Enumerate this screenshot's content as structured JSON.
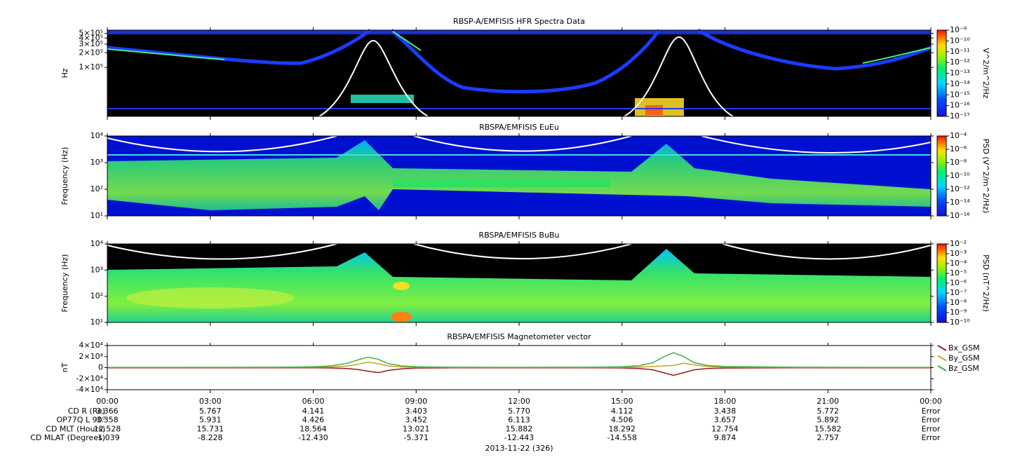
{
  "chart_data": [
    {
      "type": "spectrogram",
      "title": "RBSP-A/EMFISIS  HFR Spectra Data",
      "ylabel": "Hz",
      "log_y": true,
      "ylim": [
        10000,
        580000
      ],
      "yticks": [
        {
          "value": 100000,
          "label": "1×10⁵"
        },
        {
          "value": 200000,
          "label": "2×10⁵"
        },
        {
          "value": 300000,
          "label": "3×10⁵"
        },
        {
          "value": 400000,
          "label": "4×10⁵"
        },
        {
          "value": 500000,
          "label": "5×10⁵"
        }
      ],
      "zlabel": "V^2/m^2/Hz",
      "log_z": true,
      "zlim": [
        1e-17,
        1e-09
      ],
      "zticks": [
        {
          "value": 1e-17,
          "label": "10⁻¹⁷"
        },
        {
          "value": 1e-16,
          "label": "10⁻¹⁶"
        },
        {
          "value": 1e-15,
          "label": "10⁻¹⁵"
        },
        {
          "value": 1e-14,
          "label": "10⁻¹⁴"
        },
        {
          "value": 1e-13,
          "label": "10⁻¹³"
        },
        {
          "value": 1e-12,
          "label": "10⁻¹²"
        },
        {
          "value": 1e-11,
          "label": "10⁻¹¹"
        },
        {
          "value": 1e-10,
          "label": "10⁻¹⁰"
        },
        {
          "value": 1e-09,
          "label": "10⁻⁹"
        }
      ]
    },
    {
      "type": "spectrogram",
      "title": "RBSPA/EMFISIS  EuEu",
      "ylabel": "Frequency (Hz)",
      "log_y": true,
      "ylim": [
        10,
        10000
      ],
      "yticks": [
        {
          "value": 10,
          "label": "10¹"
        },
        {
          "value": 100,
          "label": "10²"
        },
        {
          "value": 1000,
          "label": "10³"
        },
        {
          "value": 10000,
          "label": "10⁴"
        }
      ],
      "zlabel": "PSD (V^2/m^2/Hz)",
      "log_z": true,
      "zlim": [
        1e-16,
        0.0001
      ],
      "zticks": [
        {
          "value": 1e-16,
          "label": "10⁻¹⁶"
        },
        {
          "value": 1e-14,
          "label": "10⁻¹⁴"
        },
        {
          "value": 1e-12,
          "label": "10⁻¹²"
        },
        {
          "value": 1e-10,
          "label": "10⁻¹⁰"
        },
        {
          "value": 1e-08,
          "label": "10⁻⁸"
        },
        {
          "value": 1e-06,
          "label": "10⁻⁶"
        },
        {
          "value": 0.0001,
          "label": "10⁻⁴"
        }
      ]
    },
    {
      "type": "spectrogram",
      "title": "RBSPA/EMFISIS  BuBu",
      "ylabel": "Frequency (Hz)",
      "log_y": true,
      "ylim": [
        10,
        10000
      ],
      "yticks": [
        {
          "value": 10,
          "label": "10¹"
        },
        {
          "value": 100,
          "label": "10²"
        },
        {
          "value": 1000,
          "label": "10³"
        },
        {
          "value": 10000,
          "label": "10⁴"
        }
      ],
      "zlabel": "PSD (nT^2/Hz)",
      "log_z": true,
      "zlim": [
        1e-10,
        0.01
      ],
      "zticks": [
        {
          "value": 1e-10,
          "label": "10⁻¹⁰"
        },
        {
          "value": 1e-09,
          "label": "10⁻⁹"
        },
        {
          "value": 1e-08,
          "label": "10⁻⁸"
        },
        {
          "value": 1e-07,
          "label": "10⁻⁷"
        },
        {
          "value": 1e-06,
          "label": "10⁻⁶"
        },
        {
          "value": 1e-05,
          "label": "10⁻⁵"
        },
        {
          "value": 0.0001,
          "label": "10⁻⁴"
        },
        {
          "value": 0.001,
          "label": "10⁻³"
        },
        {
          "value": 0.01,
          "label": "10⁻²"
        }
      ]
    },
    {
      "type": "line",
      "title": "RBSPA/EMFISIS  Magnetometer vector",
      "ylabel": "nT",
      "log_y": false,
      "ylim": [
        -40000,
        40000
      ],
      "yticks": [
        {
          "value": -40000,
          "label": "-4×10⁴"
        },
        {
          "value": -20000,
          "label": "-2×10⁴"
        },
        0,
        {
          "value": 20000,
          "label": "2×10⁴"
        },
        {
          "value": 40000,
          "label": "4×10⁴"
        }
      ],
      "xlim": [
        0,
        24
      ],
      "xticks": [
        {
          "value": 0,
          "label": "00:00"
        },
        {
          "value": 3,
          "label": "03:00"
        },
        {
          "value": 6,
          "label": "06:00"
        },
        {
          "value": 9,
          "label": "09:00"
        },
        {
          "value": 12,
          "label": "12:00"
        },
        {
          "value": 15,
          "label": "15:00"
        },
        {
          "value": 18,
          "label": "18:00"
        },
        {
          "value": 21,
          "label": "21:00"
        },
        {
          "value": 24,
          "label": "00:00"
        }
      ],
      "x": [
        0,
        2,
        4,
        5,
        6,
        6.5,
        7,
        7.3,
        7.6,
        7.9,
        8.2,
        8.6,
        9,
        10,
        12,
        14,
        15,
        15.5,
        15.9,
        16.2,
        16.5,
        16.8,
        17.1,
        17.5,
        18,
        20,
        22,
        24
      ],
      "series": [
        {
          "name": "Bx_GSM",
          "color": "#a01818",
          "values": [
            -300,
            -300,
            -300,
            -300,
            -400,
            -600,
            -1500,
            -3500,
            -6500,
            -9000,
            -5000,
            -2000,
            -800,
            -400,
            -300,
            -300,
            -600,
            -1500,
            -4000,
            -9000,
            -14000,
            -9000,
            -4000,
            -1500,
            -700,
            -400,
            -300,
            -300
          ]
        },
        {
          "name": "By_GSM",
          "color": "#c8a028",
          "values": [
            200,
            200,
            300,
            400,
            700,
            1200,
            3000,
            6000,
            10000,
            7000,
            3000,
            1200,
            600,
            400,
            200,
            300,
            500,
            1000,
            2000,
            3000,
            4000,
            8000,
            5000,
            2000,
            900,
            400,
            200,
            200
          ]
        },
        {
          "name": "Bz_GSM",
          "color": "#3cb43c",
          "values": [
            500,
            500,
            600,
            800,
            1500,
            3000,
            8000,
            14000,
            19000,
            15000,
            7000,
            3000,
            1500,
            800,
            500,
            800,
            1500,
            3500,
            9000,
            19000,
            27000,
            20000,
            9000,
            4000,
            2000,
            800,
            500,
            500
          ]
        }
      ],
      "ephemeris": [
        {
          "label": "CD R (Re)",
          "values": [
            "3.366",
            "5.767",
            "4.141",
            "3.403",
            "5.770",
            "4.112",
            "3.438",
            "5.772",
            "Error"
          ]
        },
        {
          "label": "OP77Q L 90⁰",
          "values": [
            "3.358",
            "5.931",
            "4.426",
            "3.452",
            "6.113",
            "4.506",
            "3.657",
            "5.892",
            "Error"
          ]
        },
        {
          "label": "CD MLT (Hours)",
          "values": [
            "12.528",
            "15.731",
            "18.564",
            "13.021",
            "15.882",
            "18.292",
            "12.754",
            "15.582",
            "Error"
          ]
        },
        {
          "label": "CD MLAT (Degrees)",
          "values": [
            "-1.039",
            "-8.228",
            "-12.430",
            "-5.371",
            "-12.443",
            "-14.558",
            "9.874",
            "2.757",
            "Error"
          ]
        }
      ],
      "xlabel": "2013-11-22 (326)"
    }
  ]
}
